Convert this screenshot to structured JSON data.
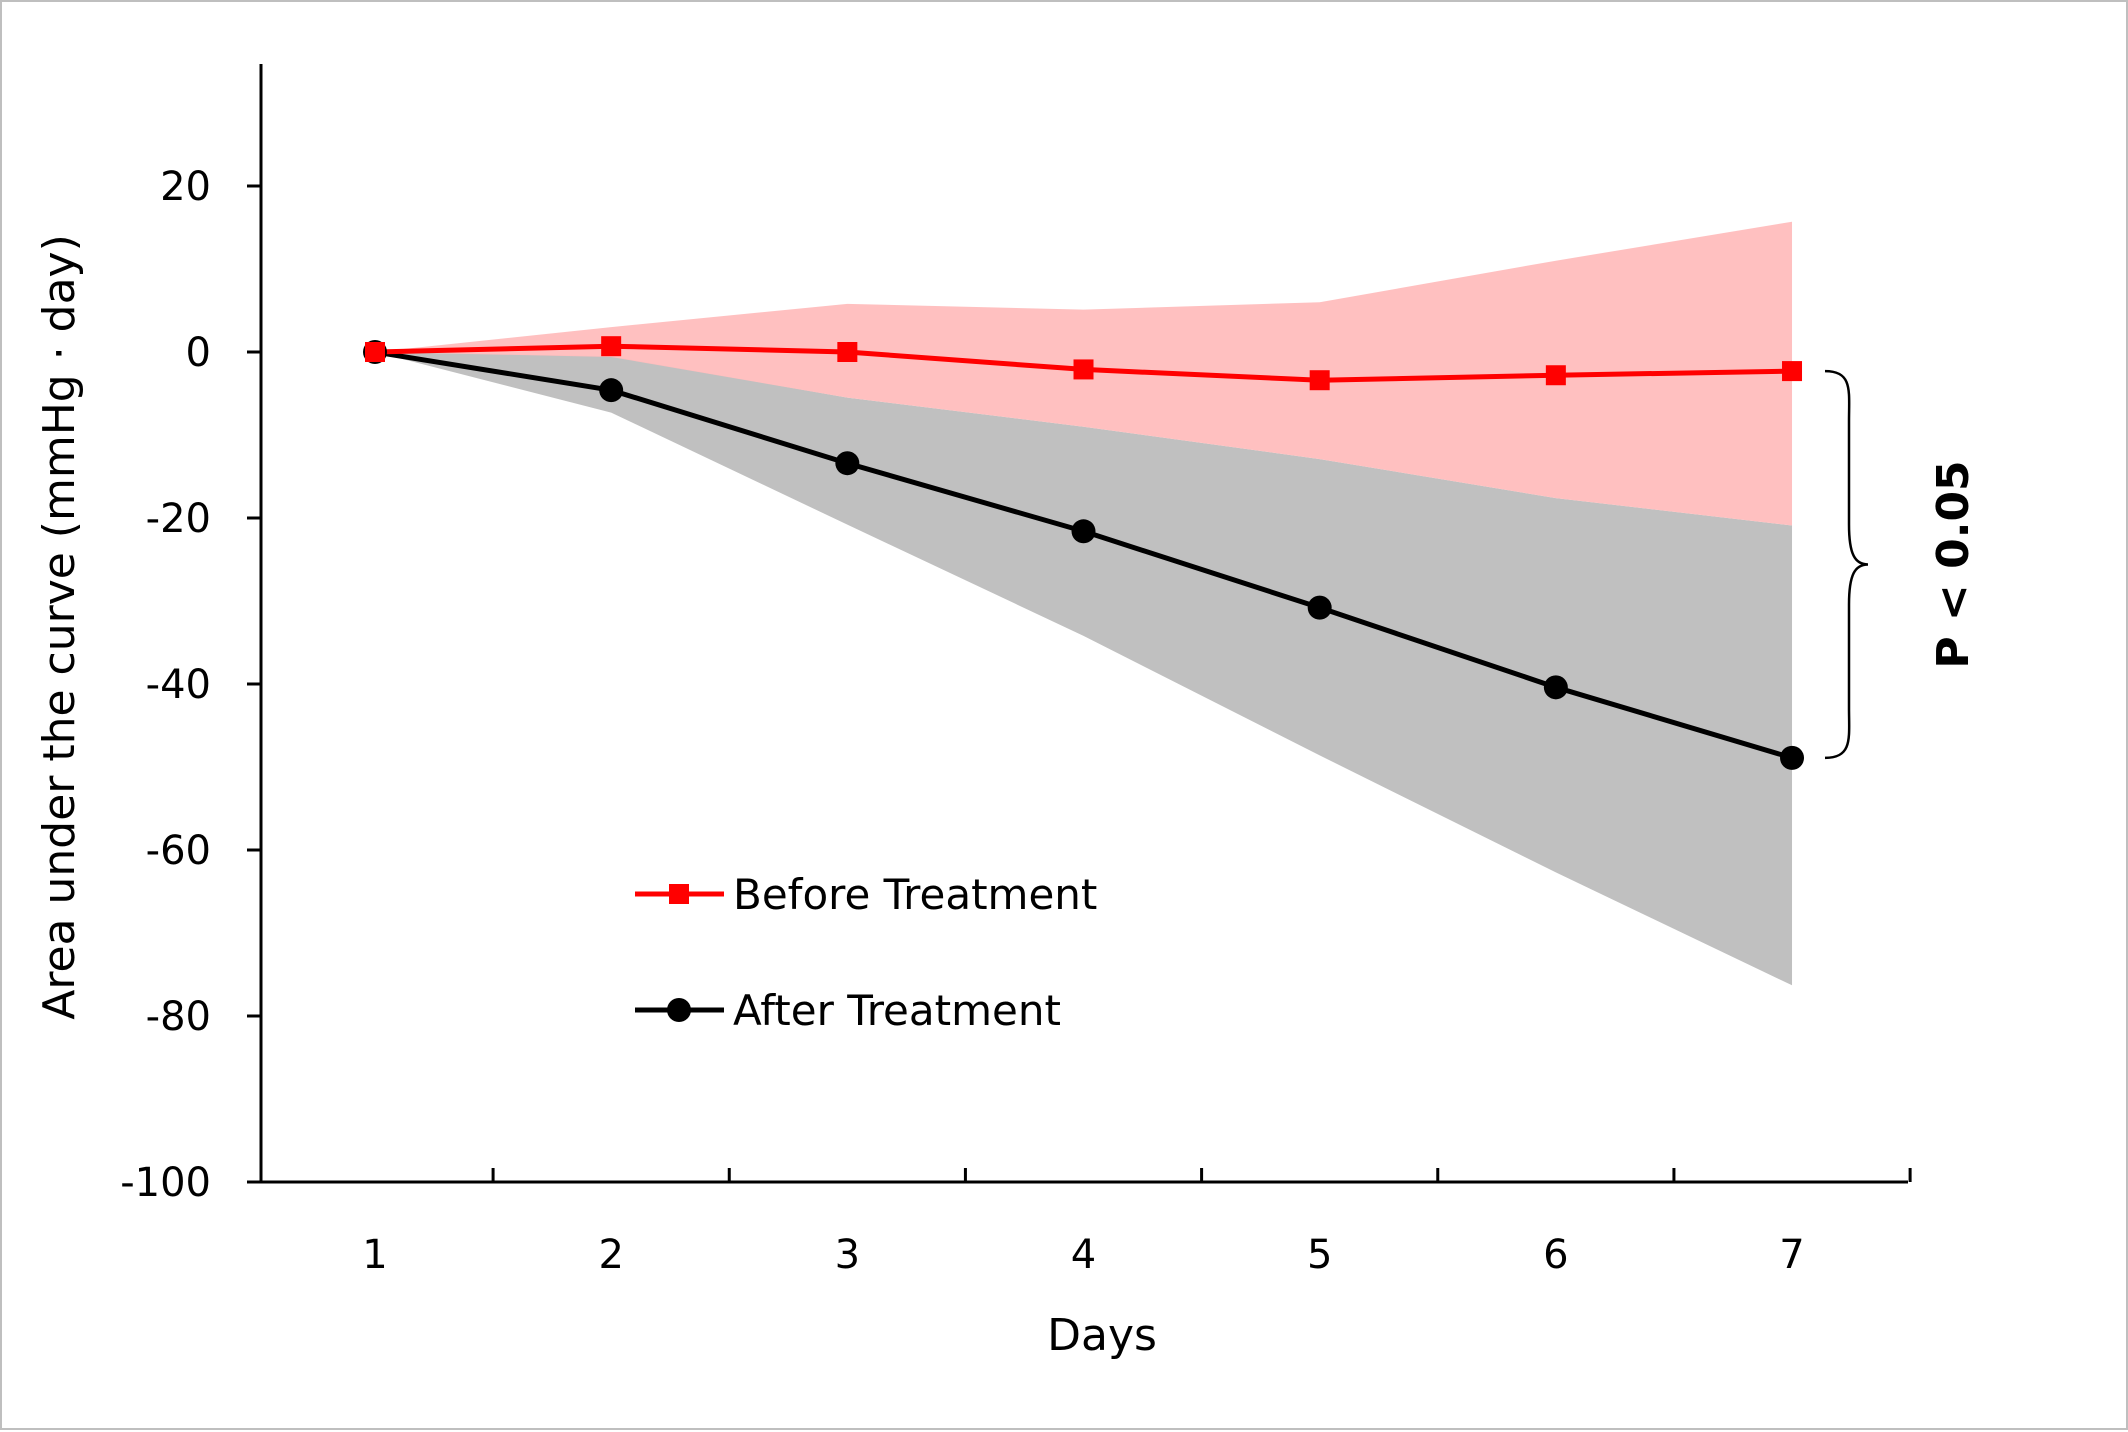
{
  "chart_data": {
    "type": "line",
    "title": "",
    "xlabel": "Days",
    "ylabel": "Area under the curve (mmHg · day)",
    "x": [
      1,
      2,
      3,
      4,
      5,
      6,
      7
    ],
    "x_tick_labels": [
      "1",
      "2",
      "3",
      "4",
      "5",
      "6",
      "7"
    ],
    "ylim": [
      -100,
      35
    ],
    "y_ticks": [
      20,
      0,
      -20,
      -40,
      -60,
      -80,
      -100
    ],
    "y_tick_labels": [
      "20",
      "0",
      "-20",
      "-40",
      "-60",
      "-80",
      "-100"
    ],
    "grid": false,
    "legend_position": "lower-left",
    "series": [
      {
        "name": "Before Treatment",
        "color": "#ff0000",
        "band_color": "#ffbdbd",
        "marker": "square",
        "values": [
          0,
          0.7,
          0,
          -2.1,
          -3.4,
          -2.8,
          -2.3
        ],
        "band_upper": [
          0,
          3.0,
          5.8,
          5.1,
          6.0,
          11.0,
          15.7
        ],
        "band_lower": [
          0,
          -0.6,
          -5.5,
          -9.0,
          -12.9,
          -17.6,
          -20.9
        ]
      },
      {
        "name": "After Treatment",
        "color": "#000000",
        "band_color": "#c0c0c0",
        "marker": "circle",
        "values": [
          0,
          -4.6,
          -13.4,
          -21.6,
          -30.8,
          -40.4,
          -48.9
        ],
        "band_upper": [
          0,
          -0.5,
          -5.5,
          -9.0,
          -12.9,
          -17.6,
          -20.9
        ],
        "band_lower": [
          0,
          -7.3,
          -20.8,
          -34.2,
          -48.6,
          -62.7,
          -76.3
        ]
      }
    ],
    "annotation": {
      "text": "P < 0.05",
      "from_value": -2.3,
      "to_value": -48.9
    }
  }
}
